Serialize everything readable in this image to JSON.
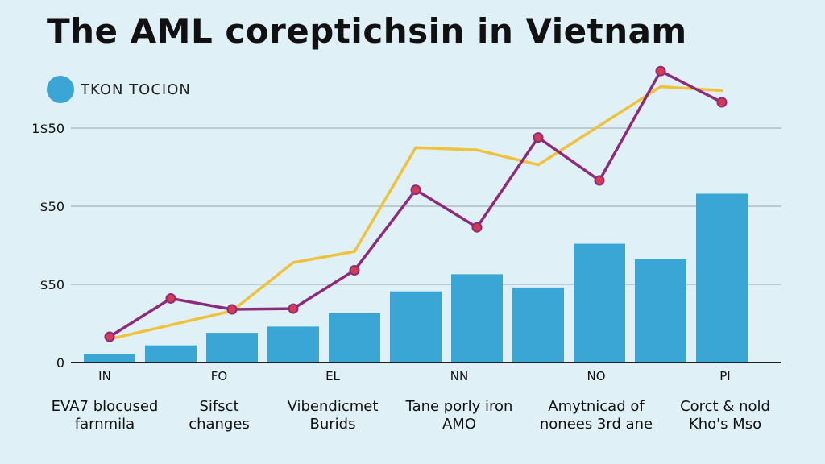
{
  "chart_data": {
    "type": "bar",
    "title": "The AML coreptichsin in Vietnam",
    "legend": {
      "label": "TKON TOCION",
      "color": "#3aa6d6",
      "placement": "top-left"
    },
    "y_ticks": [
      {
        "label": "0",
        "value": 0
      },
      {
        "label": "$50",
        "value": 1
      },
      {
        "label": "$50",
        "value": 2
      },
      {
        "label": "1$50",
        "value": 3
      }
    ],
    "ylim": [
      0,
      3
    ],
    "grid": true,
    "bars": [
      0.11,
      0.22,
      0.38,
      0.46,
      0.63,
      0.91,
      1.13,
      0.96,
      1.52,
      1.32,
      2.16
    ],
    "line_purple": [
      0.33,
      0.82,
      0.68,
      0.69,
      1.18,
      2.21,
      1.73,
      2.88,
      2.33,
      3.73,
      3.33
    ],
    "line_yellow": [
      0.3,
      0.48,
      0.66,
      1.28,
      1.42,
      2.75,
      2.72,
      2.53,
      3.03,
      3.53,
      3.48
    ],
    "x_codes": [
      "IN",
      "FO",
      "EL",
      "NN",
      "NO",
      "PI"
    ],
    "x_categories": [
      [
        "EVA7 blocused",
        "farnmila"
      ],
      [
        "Sifsct",
        "changes"
      ],
      [
        "Vibendicmet",
        "Burids"
      ],
      [
        "Tane porly iron",
        "AMO"
      ],
      [
        "Amytnicad of",
        "nonees 3rd ane"
      ],
      [
        "Corct & nold",
        "Kho's Mso"
      ]
    ],
    "colors": {
      "bar": "#3aa6d6",
      "line_purple": "#8e2a7c",
      "line_yellow": "#f0c23c",
      "grid": "#aab4bb",
      "axis": "#222222"
    }
  }
}
